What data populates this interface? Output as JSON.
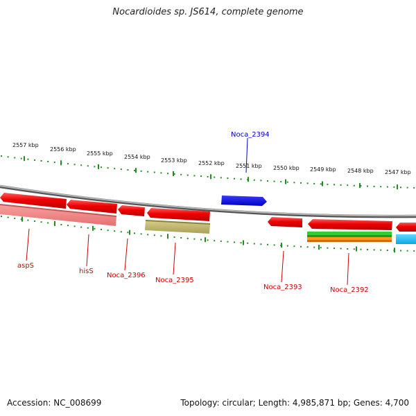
{
  "title": "Nocardioides sp. JS614, complete genome",
  "footer": {
    "accession": "Accession: NC_008699",
    "topology": "Topology: circular; Length: 4,985,871 bp; Genes: 4,700"
  },
  "ruler_ticks": [
    "2557 kbp",
    "2556 kbp",
    "2555 kbp",
    "2554 kbp",
    "2553 kbp",
    "2552 kbp",
    "2551 kbp",
    "2550 kbp",
    "2549 kbp",
    "2548 kbp",
    "2547 kbp"
  ],
  "gene_labels": [
    {
      "text": "Noca_2394",
      "color": "#0000cc"
    },
    {
      "text": "aspS",
      "color": "#cc0000"
    },
    {
      "text": "hisS",
      "color": "#cc0000"
    },
    {
      "text": "Noca_2396",
      "color": "#cc0000"
    },
    {
      "text": "Noca_2395",
      "color": "#cc0000"
    },
    {
      "text": "Noca_2393",
      "color": "#cc0000"
    },
    {
      "text": "Noca_2392",
      "color": "#cc0000"
    }
  ],
  "colors": {
    "gene_red": "#ee0000",
    "gene_blue": "#0000ee",
    "backbone": "#888888",
    "ruler": "#228b22"
  }
}
